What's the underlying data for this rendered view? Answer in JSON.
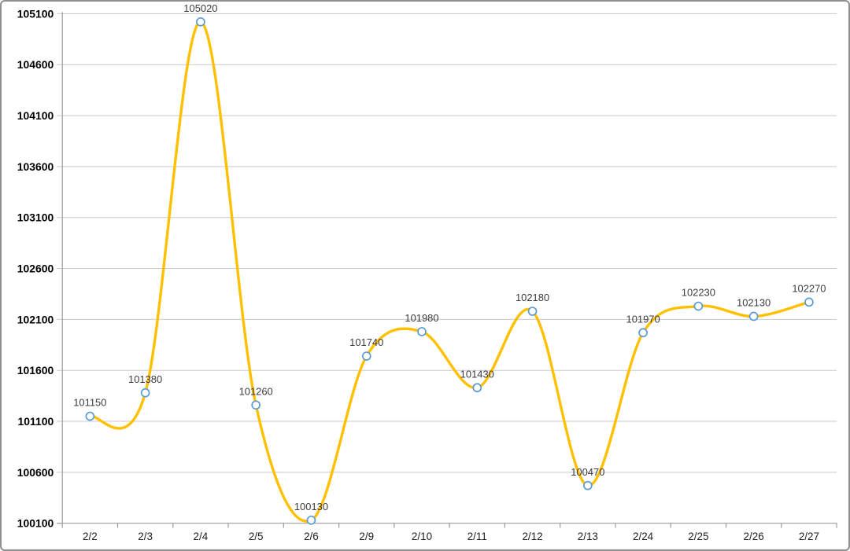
{
  "chart_data": {
    "type": "line",
    "title": "",
    "smooth": true,
    "grid": true,
    "legend_position": "none",
    "categories": [
      "2/2",
      "2/3",
      "2/4",
      "2/5",
      "2/6",
      "2/9",
      "2/10",
      "2/11",
      "2/12",
      "2/13",
      "2/24",
      "2/25",
      "2/26",
      "2/27"
    ],
    "series": [
      {
        "values": [
          101150,
          101380,
          105020,
          101260,
          100130,
          101740,
          101980,
          101430,
          102180,
          100470,
          101970,
          102230,
          102130,
          102270
        ],
        "data_labels": [
          "101150",
          "101380",
          "105020",
          "101260",
          "100130",
          "101740",
          "101980",
          "101430",
          "102180",
          "100470",
          "101970",
          "102230",
          "102130",
          "102270"
        ]
      }
    ],
    "ylim": [
      100100,
      105100
    ],
    "ytick_interval": 500,
    "ytick_labels": [
      "105100",
      "104600",
      "104100",
      "103600",
      "103100",
      "102600",
      "102100",
      "101600",
      "101100",
      "100600",
      "100100"
    ],
    "xlabel": "",
    "ylabel": ""
  },
  "colors": {
    "line": "#FFC000",
    "marker_fill": "#FFFFFF",
    "marker_stroke": "#5B9BD5",
    "gridline": "#C9C9C9",
    "axis": "#9B9B9B",
    "y_tick_text": "#000000",
    "x_tick_text": "#1F1F1F",
    "data_label_text": "#3B3B3B",
    "frame_border": "#8F8F8F",
    "background": "#FFFFFF"
  }
}
